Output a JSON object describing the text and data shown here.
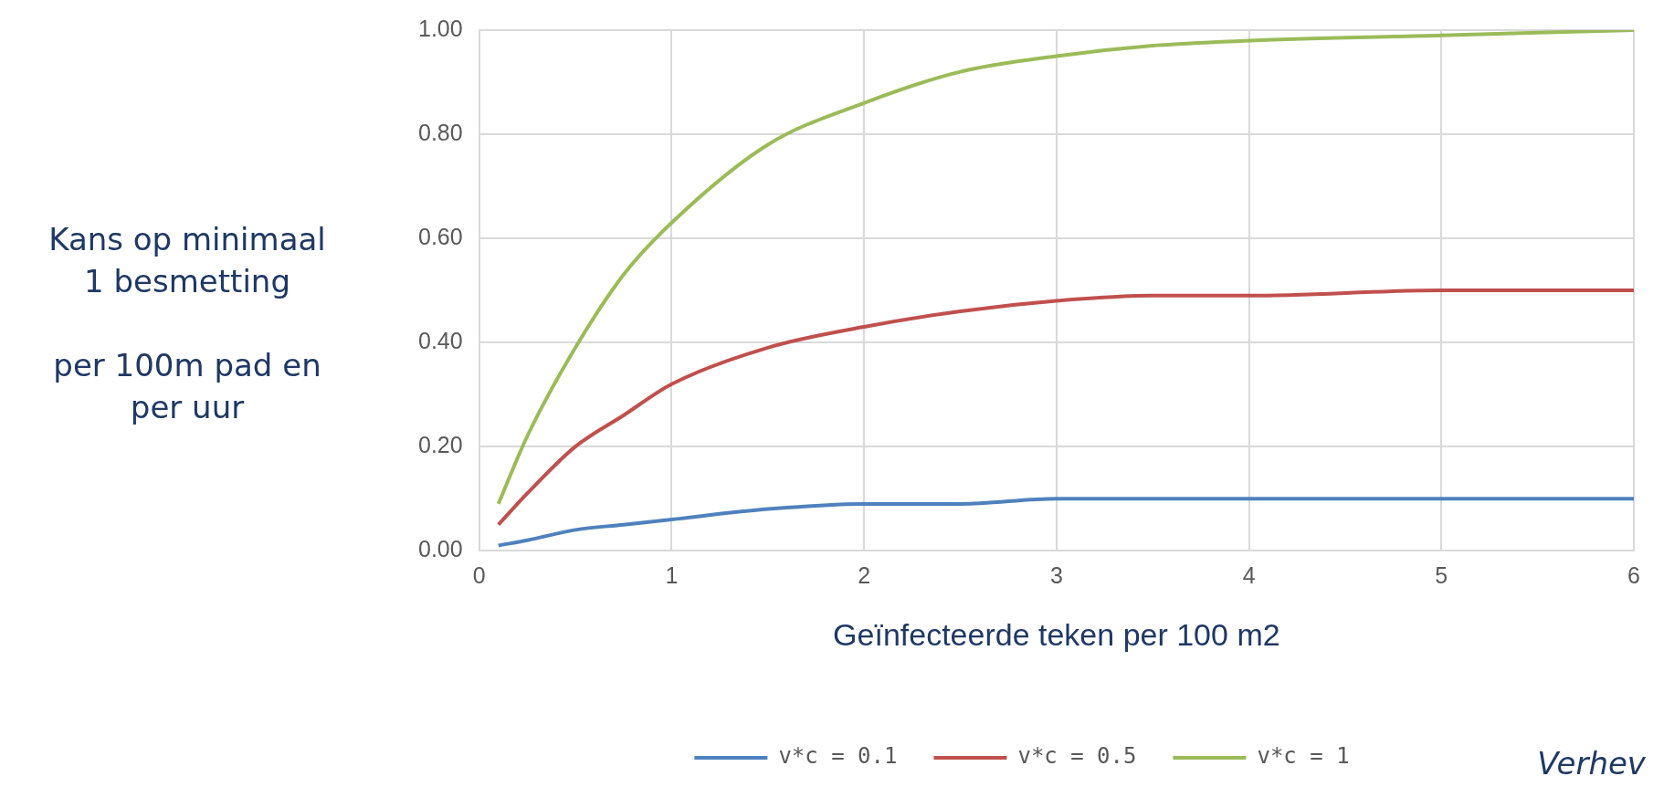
{
  "chart_data": {
    "type": "line",
    "xlabel": "Geïnfecteerde teken per 100 m2",
    "ylabel": "Kans op minimaal\n1 besmetting\n\nper 100m pad en\nper uur",
    "x": [
      0.1,
      0.25,
      0.5,
      0.75,
      1,
      1.5,
      2,
      2.5,
      3,
      3.5,
      4,
      5,
      6
    ],
    "series": [
      {
        "name": "v*c = 0.1",
        "color": "#4f81bd",
        "values": [
          0.01,
          0.02,
          0.04,
          0.05,
          0.06,
          0.08,
          0.09,
          0.09,
          0.1,
          0.1,
          0.1,
          0.1,
          0.1
        ]
      },
      {
        "name": "v*c = 0.5",
        "color": "#c0504d",
        "values": [
          0.05,
          0.11,
          0.2,
          0.26,
          0.32,
          0.39,
          0.43,
          0.46,
          0.48,
          0.49,
          0.49,
          0.5,
          0.5
        ]
      },
      {
        "name": "v*c = 1",
        "color": "#9bbb59",
        "values": [
          0.09,
          0.22,
          0.39,
          0.53,
          0.63,
          0.78,
          0.86,
          0.92,
          0.95,
          0.97,
          0.98,
          0.99,
          1.0
        ]
      }
    ],
    "xlim": [
      0,
      6
    ],
    "xticks": [
      0,
      1,
      2,
      3,
      4,
      5,
      6
    ],
    "ylim": [
      0,
      1
    ],
    "yticks": [
      {
        "value": 0,
        "label": "0.00"
      },
      {
        "value": 0.2,
        "label": "0.20"
      },
      {
        "value": 0.4,
        "label": "0.40"
      },
      {
        "value": 0.6,
        "label": "0.60"
      },
      {
        "value": 0.8,
        "label": "0.80"
      },
      {
        "value": 1,
        "label": "1.00"
      }
    ],
    "grid": true,
    "legend": "bottom",
    "marker": "none",
    "line_style": "solid",
    "annotations": [
      "Verhev"
    ]
  }
}
